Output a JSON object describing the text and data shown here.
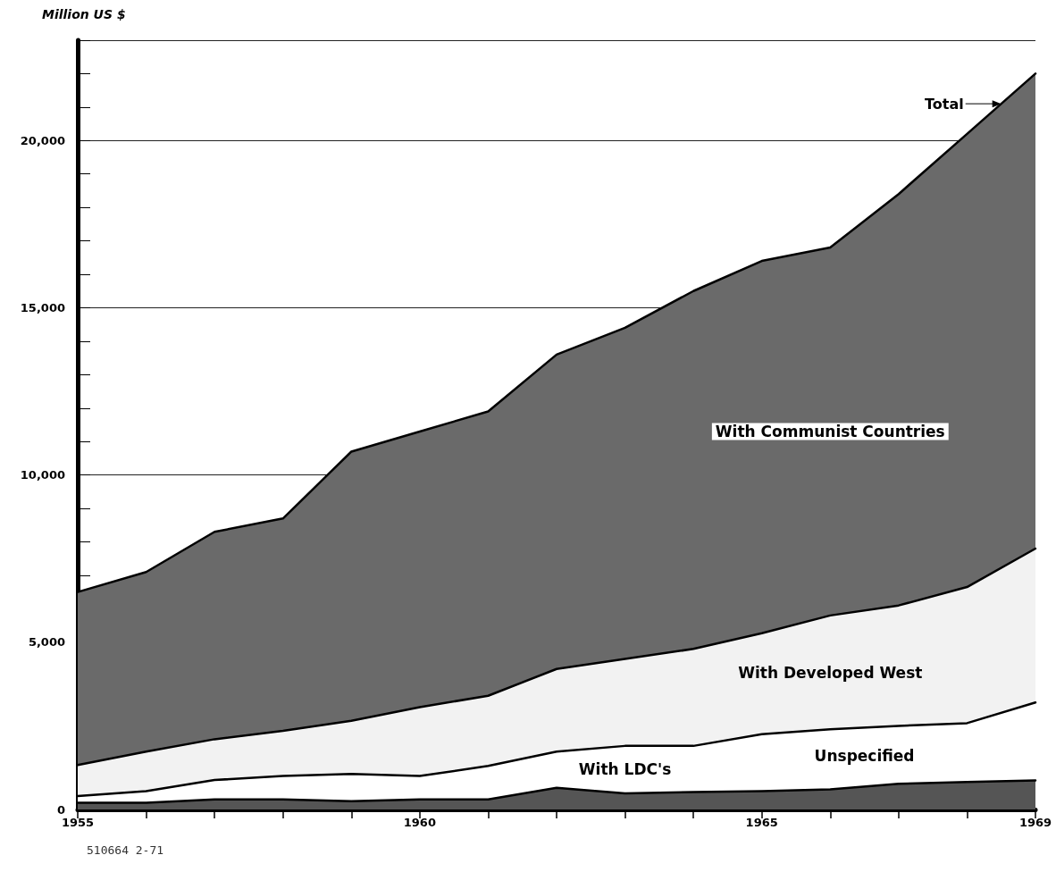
{
  "chart_data": {
    "type": "area",
    "stacked": true,
    "ylabel": "Million US $",
    "x": [
      1955,
      1956,
      1957,
      1958,
      1959,
      1960,
      1961,
      1962,
      1963,
      1964,
      1965,
      1966,
      1967,
      1968,
      1969
    ],
    "series": [
      {
        "name": "Unspecified",
        "color": "#555555",
        "values": [
          200,
          200,
          300,
          300,
          250,
          300,
          300,
          650,
          480,
          520,
          550,
          600,
          770,
          820,
          870
        ]
      },
      {
        "name": "With LDC's",
        "color": "#ffffff",
        "values": [
          200,
          350,
          580,
          700,
          810,
          700,
          1000,
          1080,
          1420,
          1380,
          1700,
          1800,
          1730,
          1760,
          2330
        ]
      },
      {
        "name": "With Developed West",
        "color": "#f2f2f2",
        "values": [
          930,
          1180,
          1220,
          1350,
          1590,
          2060,
          2100,
          2470,
          2600,
          2900,
          3020,
          3400,
          3600,
          4070,
          4600
        ]
      },
      {
        "name": "With Communist Countries",
        "color": "#6a6a6a",
        "values": [
          5170,
          5370,
          6200,
          6350,
          8050,
          8240,
          8500,
          9400,
          9900,
          10700,
          11130,
          11000,
          12300,
          13550,
          14200
        ]
      }
    ],
    "xlim": [
      1955,
      1969
    ],
    "xticks": [
      1955,
      {
        "value": 1956,
        "label": null
      },
      {
        "value": 1957,
        "label": null
      },
      {
        "value": 1958,
        "label": null
      },
      {
        "value": 1959,
        "label": null
      },
      1960,
      {
        "value": 1961,
        "label": null
      },
      {
        "value": 1962,
        "label": null
      },
      {
        "value": 1963,
        "label": null
      },
      {
        "value": 1964,
        "label": null
      },
      1965,
      {
        "value": 1966,
        "label": null
      },
      {
        "value": 1967,
        "label": null
      },
      {
        "value": 1968,
        "label": null
      },
      1969
    ],
    "ylim": [
      0,
      23000
    ],
    "yticks": [
      0,
      {
        "value": 1000,
        "label": null
      },
      {
        "value": 2000,
        "label": null
      },
      {
        "value": 3000,
        "label": null
      },
      {
        "value": 4000,
        "label": null
      },
      {
        "value": 5000,
        "label": "5,000"
      },
      {
        "value": 6000,
        "label": null
      },
      {
        "value": 7000,
        "label": null
      },
      {
        "value": 8000,
        "label": null
      },
      {
        "value": 9000,
        "label": null
      },
      {
        "value": 10000,
        "label": "10,000"
      },
      {
        "value": 11000,
        "label": null
      },
      {
        "value": 12000,
        "label": null
      },
      {
        "value": 13000,
        "label": null
      },
      {
        "value": 14000,
        "label": null
      },
      {
        "value": 15000,
        "label": "15,000"
      },
      {
        "value": 16000,
        "label": null
      },
      {
        "value": 17000,
        "label": null
      },
      {
        "value": 18000,
        "label": null
      },
      {
        "value": 19000,
        "label": null
      },
      {
        "value": 20000,
        "label": "20,000"
      },
      {
        "value": 21000,
        "label": null
      },
      {
        "value": 22000,
        "label": null
      }
    ],
    "grid": "y",
    "legend": false,
    "marker": "none",
    "line_style": "solid",
    "annotations": [
      {
        "text": "Total",
        "x": 1968.5,
        "y": 21100
      },
      "510664 2-71"
    ]
  }
}
